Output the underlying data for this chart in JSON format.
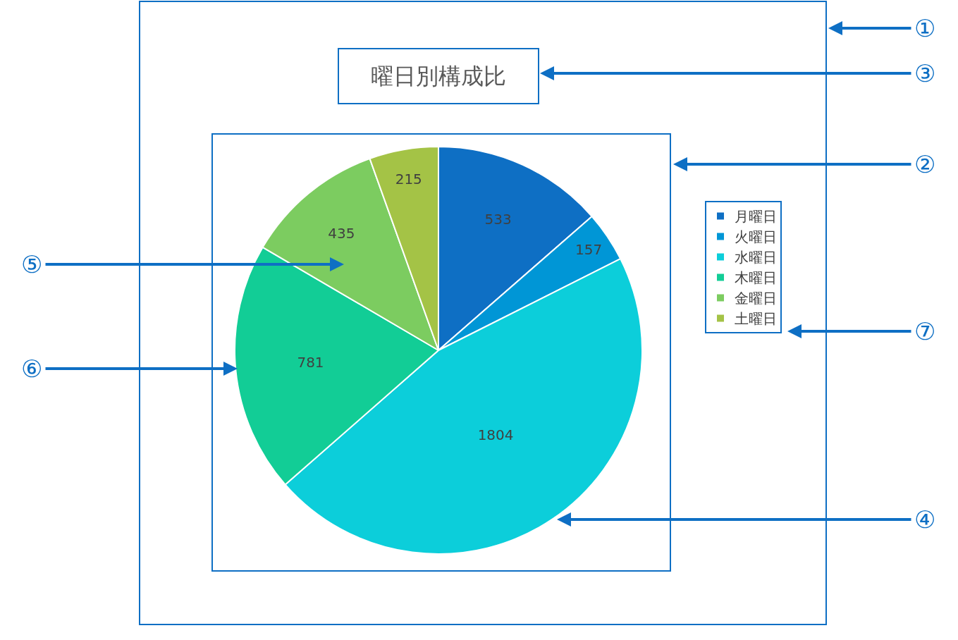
{
  "chart_data": {
    "type": "pie",
    "title": "曜日別構成比",
    "categories": [
      "月曜日",
      "火曜日",
      "水曜日",
      "木曜日",
      "金曜日",
      "土曜日"
    ],
    "values": [
      533,
      157,
      1804,
      781,
      435,
      215
    ],
    "colors": [
      "#0e6fc4",
      "#0096d6",
      "#0cceda",
      "#12cd96",
      "#7ccc60",
      "#a4c346"
    ],
    "data_labels": true,
    "legend": "right",
    "annotations": [
      "①",
      "②",
      "③",
      "④",
      "⑤",
      "⑥",
      "⑦"
    ]
  }
}
